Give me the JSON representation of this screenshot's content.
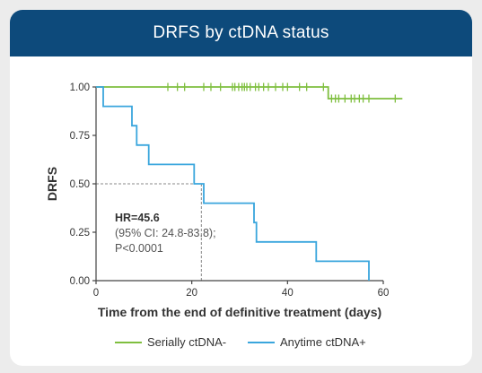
{
  "title": "DRFS by ctDNA status",
  "annotation": {
    "line1": "HR=45.6",
    "line2": "(95% CI: 24.8-83.8);",
    "line3": "P<0.0001"
  },
  "colors": {
    "header": "#0d4a7b",
    "series1": "#7fbf3f",
    "series2": "#3aa6dd"
  },
  "chart_data": {
    "type": "line",
    "xlabel": "Time from the end of definitive treatment (days)",
    "ylabel": "DRFS",
    "xlim": [
      0,
      60
    ],
    "ylim": [
      0,
      1
    ],
    "xticks": [
      "0",
      "20",
      "40",
      "60"
    ],
    "yticks": [
      "0.00",
      "0.25",
      "0.50",
      "0.75",
      "1.00"
    ],
    "reference": {
      "median_time": 22,
      "survival": 0.5
    },
    "series": [
      {
        "name": "Serially ctDNA-",
        "color": "#7fbf3f",
        "steps": [
          [
            0,
            1.0
          ],
          [
            48.5,
            1.0
          ],
          [
            48.5,
            0.94
          ],
          [
            64,
            0.94
          ]
        ],
        "censored": [
          [
            15,
            1.0
          ],
          [
            17,
            1.0
          ],
          [
            18.5,
            1.0
          ],
          [
            22.5,
            1.0
          ],
          [
            24,
            1.0
          ],
          [
            26,
            1.0
          ],
          [
            28.5,
            1.0
          ],
          [
            29,
            1.0
          ],
          [
            29.8,
            1.0
          ],
          [
            30.5,
            1.0
          ],
          [
            31,
            1.0
          ],
          [
            31.5,
            1.0
          ],
          [
            32.2,
            1.0
          ],
          [
            33.3,
            1.0
          ],
          [
            34,
            1.0
          ],
          [
            35,
            1.0
          ],
          [
            36,
            1.0
          ],
          [
            37.5,
            1.0
          ],
          [
            39,
            1.0
          ],
          [
            40,
            1.0
          ],
          [
            42.5,
            1.0
          ],
          [
            44,
            1.0
          ],
          [
            47.5,
            1.0
          ],
          [
            49.2,
            0.94
          ],
          [
            50,
            0.94
          ],
          [
            50.7,
            0.94
          ],
          [
            52,
            0.94
          ],
          [
            53.3,
            0.94
          ],
          [
            54,
            0.94
          ],
          [
            55,
            0.94
          ],
          [
            55.8,
            0.94
          ],
          [
            57,
            0.94
          ],
          [
            62.5,
            0.94
          ]
        ]
      },
      {
        "name": "Anytime ctDNA+",
        "color": "#3aa6dd",
        "steps": [
          [
            0,
            1.0
          ],
          [
            1.5,
            1.0
          ],
          [
            1.5,
            0.9
          ],
          [
            7.5,
            0.9
          ],
          [
            7.5,
            0.8
          ],
          [
            8.5,
            0.8
          ],
          [
            8.5,
            0.7
          ],
          [
            11,
            0.7
          ],
          [
            11,
            0.6
          ],
          [
            20.5,
            0.6
          ],
          [
            20.5,
            0.5
          ],
          [
            22.5,
            0.5
          ],
          [
            22.5,
            0.4
          ],
          [
            33,
            0.4
          ],
          [
            33,
            0.3
          ],
          [
            33.5,
            0.3
          ],
          [
            33.5,
            0.2
          ],
          [
            46,
            0.2
          ],
          [
            46,
            0.1
          ],
          [
            57,
            0.1
          ],
          [
            57,
            0.0
          ]
        ],
        "censored": [
          [
            33,
            0.38
          ]
        ]
      }
    ],
    "legend": {
      "position": "bottom"
    }
  }
}
